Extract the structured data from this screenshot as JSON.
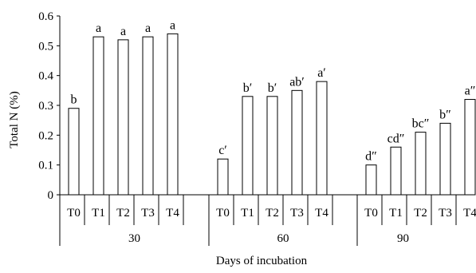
{
  "chart_data": {
    "type": "bar",
    "ylabel": "Total N (%)",
    "xlabel": "Days of incubation",
    "ylim": [
      0,
      0.6
    ],
    "yticks": [
      "0",
      "0.1",
      "0.2",
      "0.3",
      "0.4",
      "0.5",
      "0.6"
    ],
    "grid": false,
    "bar_fill": "#ffffff",
    "bar_stroke": "#000000",
    "groups": [
      {
        "label": "30",
        "categories": [
          "T0",
          "T1",
          "T2",
          "T3",
          "T4"
        ],
        "values": [
          0.29,
          0.53,
          0.52,
          0.53,
          0.54
        ],
        "letters": [
          "b",
          "a",
          "a",
          "a",
          "a"
        ]
      },
      {
        "label": "60",
        "categories": [
          "T0",
          "T1",
          "T2",
          "T3",
          "T4"
        ],
        "values": [
          0.12,
          0.33,
          0.33,
          0.35,
          0.38
        ],
        "letters": [
          "c′",
          "b′",
          "b′",
          "ab′",
          "a′"
        ]
      },
      {
        "label": "90",
        "categories": [
          "T0",
          "T1",
          "T2",
          "T3",
          "T4"
        ],
        "values": [
          0.1,
          0.16,
          0.21,
          0.24,
          0.32
        ],
        "letters": [
          "d″",
          "cd″",
          "bc″",
          "b″",
          "a″"
        ]
      }
    ]
  }
}
